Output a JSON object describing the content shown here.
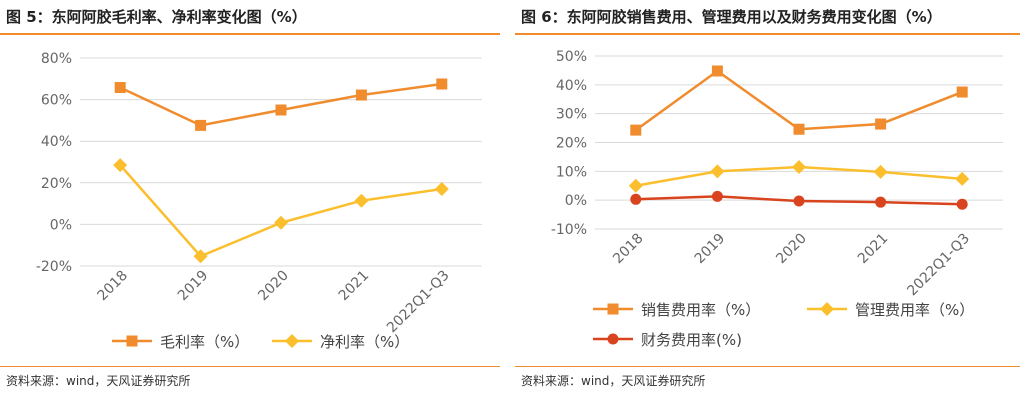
{
  "left": {
    "title": "图 5：东阿阿胶毛利率、净利率变化图（%）",
    "source": "资料来源：wind，天风证券研究所"
  },
  "right": {
    "title": "图 6：东阿阿胶销售费用、管理费用以及财务费用变化图（%）",
    "source": "资料来源：wind，天风证券研究所"
  },
  "colors": {
    "orange": "#f08c2e",
    "yellow": "#fbbf2d",
    "red": "#d9441e",
    "grid": "#d9d9d9",
    "rule": "#f08c2e"
  },
  "chart_data": [
    {
      "type": "line",
      "title": "东阿阿胶毛利率、净利率变化图（%）",
      "categories": [
        "2018",
        "2019",
        "2020",
        "2021",
        "2022Q1-Q3"
      ],
      "ylim": [
        -20,
        80
      ],
      "yticks": [
        -20,
        0,
        20,
        40,
        60,
        80
      ],
      "ytick_labels": [
        "-20%",
        "0%",
        "20%",
        "40%",
        "60%",
        "80%"
      ],
      "grid": true,
      "legend_position": "bottom",
      "series": [
        {
          "name": "毛利率（%）",
          "values": [
            65.8,
            47.6,
            55.0,
            62.2,
            67.5
          ],
          "color": "#f08c2e",
          "marker": "square"
        },
        {
          "name": "净利率（%）",
          "values": [
            28.5,
            -15.3,
            0.8,
            11.4,
            17.0
          ],
          "color": "#fbbf2d",
          "marker": "diamond"
        }
      ]
    },
    {
      "type": "line",
      "title": "东阿阿胶销售费用、管理费用以及财务费用变化图（%）",
      "categories": [
        "2018",
        "2019",
        "2020",
        "2021",
        "2022Q1-Q3"
      ],
      "ylim": [
        -10,
        50
      ],
      "yticks": [
        -10,
        0,
        10,
        20,
        30,
        40,
        50
      ],
      "ytick_labels": [
        "-10%",
        "0%",
        "10%",
        "20%",
        "30%",
        "40%",
        "50%"
      ],
      "grid": true,
      "legend_position": "bottom",
      "series": [
        {
          "name": "销售费用率（%）",
          "values": [
            24.3,
            44.8,
            24.6,
            26.4,
            37.5
          ],
          "color": "#f08c2e",
          "marker": "square"
        },
        {
          "name": "管理费用率（%）",
          "values": [
            5.0,
            10.0,
            11.5,
            9.8,
            7.4
          ],
          "color": "#fbbf2d",
          "marker": "diamond"
        },
        {
          "name": "财务费用率(%)",
          "values": [
            0.3,
            1.3,
            -0.3,
            -0.7,
            -1.4
          ],
          "color": "#d9441e",
          "marker": "circle"
        }
      ]
    }
  ]
}
